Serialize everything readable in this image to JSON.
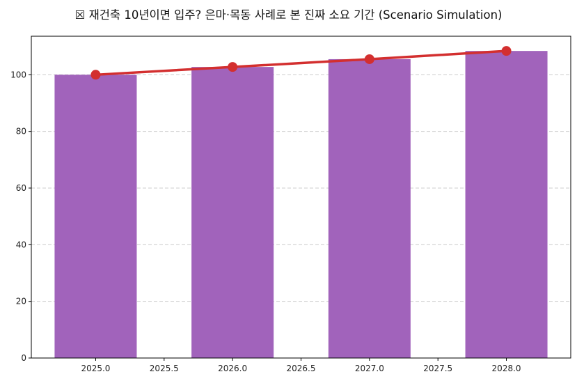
{
  "chart_data": {
    "type": "bar",
    "title": "☒ 재건축 10년이면 입주? 은마·목동 사례로 본 진짜 소요 기간 (Scenario Simulation)",
    "xlabel": "",
    "ylabel": "",
    "x": [
      2025,
      2026,
      2027,
      2028
    ],
    "series": [
      {
        "name": "bar",
        "type": "bar",
        "color": "#a163bb",
        "values": [
          100,
          102.75,
          105.5,
          108.4
        ]
      },
      {
        "name": "line",
        "type": "line",
        "color": "#d32f2f",
        "marker": "circle",
        "values": [
          100,
          102.75,
          105.5,
          108.4
        ]
      }
    ],
    "bar_width": 0.6,
    "xlim": [
      2024.53,
      2028.47
    ],
    "ylim": [
      0,
      113.6
    ],
    "xticks": [
      2025.0,
      2025.5,
      2026.0,
      2026.5,
      2027.0,
      2027.5,
      2028.0
    ],
    "xtick_labels": [
      "2025.0",
      "2025.5",
      "2026.0",
      "2026.5",
      "2027.0",
      "2027.5",
      "2028.0"
    ],
    "yticks": [
      0,
      20,
      40,
      60,
      80,
      100
    ],
    "ytick_labels": [
      "0",
      "20",
      "40",
      "60",
      "80",
      "100"
    ],
    "grid": {
      "y": true,
      "x": false,
      "style": "dashed",
      "color": "#cccccc"
    },
    "legend": null
  }
}
